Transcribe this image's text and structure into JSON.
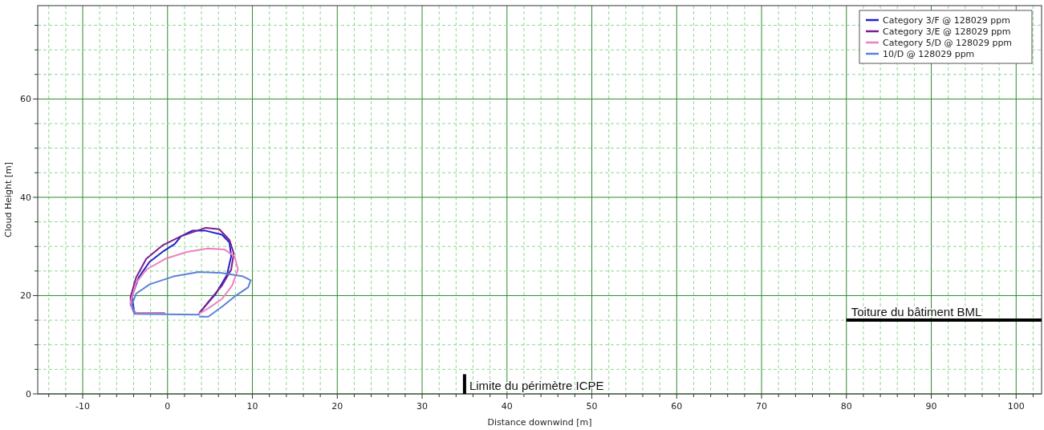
{
  "chart_data": {
    "type": "line",
    "xlabel": "Distance downwind [m]",
    "ylabel": "Cloud Height [m]",
    "xlim": [
      -15.3,
      103
    ],
    "ylim": [
      0,
      79
    ],
    "xticks": [
      {
        "value": -14,
        "label": null
      },
      {
        "value": -12,
        "label": null
      },
      -10,
      {
        "value": -8,
        "label": null
      },
      {
        "value": -6,
        "label": null
      },
      {
        "value": -4,
        "label": null
      },
      {
        "value": -2,
        "label": null
      },
      0,
      {
        "value": 2,
        "label": null
      },
      {
        "value": 4,
        "label": null
      },
      {
        "value": 6,
        "label": null
      },
      {
        "value": 8,
        "label": null
      },
      10,
      {
        "value": 12,
        "label": null
      },
      {
        "value": 14,
        "label": null
      },
      {
        "value": 16,
        "label": null
      },
      {
        "value": 18,
        "label": null
      },
      20,
      {
        "value": 22,
        "label": null
      },
      {
        "value": 24,
        "label": null
      },
      {
        "value": 26,
        "label": null
      },
      {
        "value": 28,
        "label": null
      },
      30,
      {
        "value": 32,
        "label": null
      },
      {
        "value": 34,
        "label": null
      },
      {
        "value": 36,
        "label": null
      },
      {
        "value": 38,
        "label": null
      },
      40,
      {
        "value": 42,
        "label": null
      },
      {
        "value": 44,
        "label": null
      },
      {
        "value": 46,
        "label": null
      },
      {
        "value": 48,
        "label": null
      },
      50,
      {
        "value": 52,
        "label": null
      },
      {
        "value": 54,
        "label": null
      },
      {
        "value": 56,
        "label": null
      },
      {
        "value": 58,
        "label": null
      },
      60,
      {
        "value": 62,
        "label": null
      },
      {
        "value": 64,
        "label": null
      },
      {
        "value": 66,
        "label": null
      },
      {
        "value": 68,
        "label": null
      },
      70,
      {
        "value": 72,
        "label": null
      },
      {
        "value": 74,
        "label": null
      },
      {
        "value": 76,
        "label": null
      },
      {
        "value": 78,
        "label": null
      },
      80,
      {
        "value": 82,
        "label": null
      },
      {
        "value": 84,
        "label": null
      },
      {
        "value": 86,
        "label": null
      },
      {
        "value": 88,
        "label": null
      },
      90,
      {
        "value": 92,
        "label": null
      },
      {
        "value": 94,
        "label": null
      },
      {
        "value": 96,
        "label": null
      },
      {
        "value": 98,
        "label": null
      },
      100,
      {
        "value": 102,
        "label": null
      }
    ],
    "yticks": [
      0,
      {
        "value": 5,
        "label": null
      },
      {
        "value": 10,
        "label": null
      },
      {
        "value": 15,
        "label": null
      },
      20,
      {
        "value": 25,
        "label": null
      },
      {
        "value": 30,
        "label": null
      },
      {
        "value": 35,
        "label": null
      },
      40,
      {
        "value": 45,
        "label": null
      },
      {
        "value": 50,
        "label": null
      },
      {
        "value": 55,
        "label": null
      },
      60,
      {
        "value": 65,
        "label": null
      },
      {
        "value": 70,
        "label": null
      },
      {
        "value": 75,
        "label": null
      }
    ],
    "grid": true,
    "legend": "top right",
    "marker": "none",
    "line_style": "solid",
    "series": [
      {
        "name": "Category 3/F @ 128029 ppm",
        "color": "#2222cc",
        "x": [
          -0.4,
          -3.9,
          -4.2,
          -3.4,
          -2.1,
          -0.6,
          0.85,
          1.6,
          2.9,
          4.5,
          6.4,
          7.3,
          7.5,
          7.0,
          5.7,
          3.8
        ],
        "values": [
          16.4,
          16.4,
          19.8,
          23.7,
          26.9,
          28.9,
          30.5,
          32.1,
          33.2,
          33.2,
          32.4,
          30.8,
          28.0,
          24.2,
          20.4,
          16.6
        ]
      },
      {
        "name": "Category 3/E @ 128029 ppm",
        "color": "#7b1f8f",
        "x": [
          -0.4,
          -3.9,
          -4.35,
          -4.35,
          -3.7,
          -2.5,
          -0.6,
          1.6,
          4.5,
          6.1,
          7.3,
          7.8,
          7.5,
          6.4,
          4.8,
          3.7
        ],
        "values": [
          16.4,
          16.4,
          18.2,
          19.8,
          23.7,
          27.5,
          30.2,
          32.1,
          33.8,
          33.5,
          31.3,
          28.6,
          25.3,
          22.0,
          18.7,
          16.3
        ]
      },
      {
        "name": "Category 5/D @ 128029 ppm",
        "color": "#ee80bf",
        "x": [
          -0.4,
          -3.7,
          -4.2,
          -4.35,
          -3.7,
          -2.5,
          -0.25,
          2.3,
          4.8,
          6.7,
          7.9,
          8.3,
          7.6,
          6.4,
          4.8,
          3.7
        ],
        "values": [
          16.4,
          16.5,
          17.4,
          18.7,
          22.6,
          25.3,
          27.5,
          28.9,
          29.6,
          29.4,
          28.0,
          25.3,
          22.0,
          19.3,
          17.4,
          16.3
        ]
      },
      {
        "name": "10/D @ 128029 ppm",
        "color": "#5b82d8",
        "x": [
          3.7,
          -3.9,
          -4.2,
          -3.7,
          -2.1,
          0.7,
          3.7,
          6.4,
          8.9,
          9.8,
          9.5,
          7.9,
          6.4,
          4.8,
          3.8
        ],
        "values": [
          16.1,
          16.3,
          18.2,
          20.4,
          22.3,
          23.9,
          24.8,
          24.6,
          23.9,
          23.1,
          21.7,
          19.8,
          17.7,
          15.7,
          15.7
        ]
      },
      {
        "color": "#000000",
        "x": [
          35,
          35
        ],
        "values": [
          0,
          4
        ]
      },
      {
        "color": "#000000",
        "x": [
          80,
          103
        ],
        "values": [
          15,
          15
        ]
      }
    ],
    "annotations": [
      {
        "text": "Limite du périmètre ICPE",
        "x": 35,
        "y": 0
      },
      {
        "text": "Toiture du bâtiment BML",
        "x": 80,
        "y": 15
      }
    ]
  }
}
